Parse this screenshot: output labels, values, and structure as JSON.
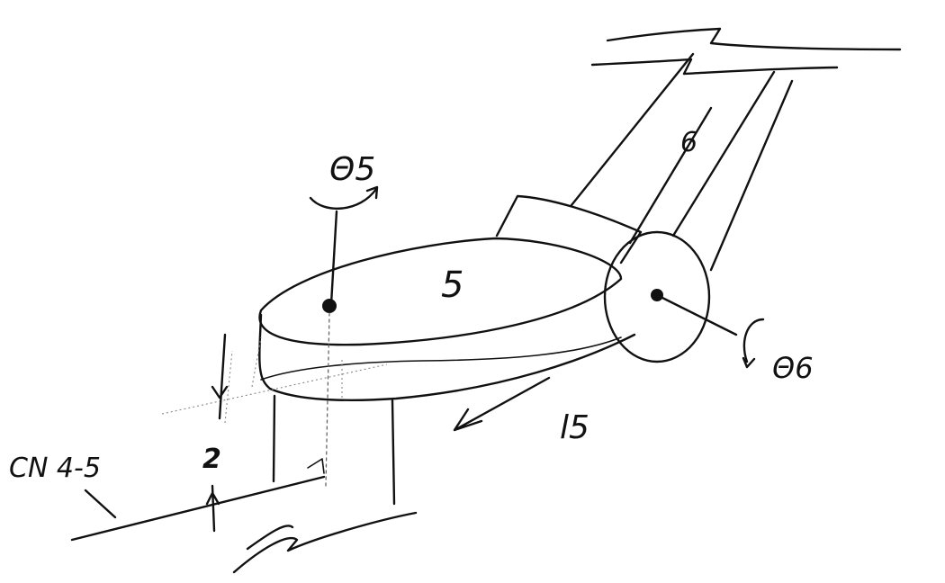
{
  "labels": {
    "theta5": "Θ5",
    "theta6": "Θ6",
    "link5": "5",
    "link6": "6",
    "length5": "l5",
    "cn": "CN 4-5",
    "offset": "2"
  },
  "colors": {
    "ink": "#111111",
    "paper": "#ffffff"
  }
}
